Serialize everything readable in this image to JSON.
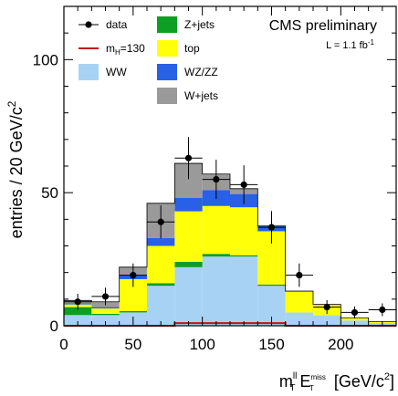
{
  "chart_data": {
    "type": "bar",
    "stacked": true,
    "x_edges": [
      0,
      20,
      40,
      60,
      80,
      100,
      120,
      140,
      160,
      180,
      200,
      220,
      240
    ],
    "xlim": [
      0,
      240
    ],
    "ylim": [
      0,
      120
    ],
    "x_ticks": [
      "0",
      "50",
      "100",
      "150",
      "200"
    ],
    "x_tick_values": [
      0,
      50,
      100,
      150,
      200
    ],
    "y_ticks": [
      "0",
      "50",
      "100"
    ],
    "y_tick_values": [
      0,
      50,
      100
    ],
    "ylabel": "entries / 20 GeV/c",
    "ylabel_sup": "2",
    "xlabel": {
      "main": "m",
      "sup": "ll",
      "sub": "T",
      "e": "E",
      "e_sup": "miss",
      "e_sub": "T",
      "units": "[GeV/c",
      "units_sup": "2",
      "units_close": "]"
    },
    "annotation": {
      "main": "CMS preliminary",
      "lumi": "L = 1.1 fb",
      "lumi_sup": "-1"
    },
    "series": [
      {
        "name": "WW",
        "color": "#a8d2f4",
        "values": [
          4,
          4,
          5,
          15,
          22,
          26,
          26,
          15,
          5,
          4,
          2,
          1
        ]
      },
      {
        "name": "Z+jets",
        "color": "#0d9e24",
        "values": [
          3,
          0.5,
          0.5,
          1,
          2,
          1,
          0.5,
          0.5,
          0,
          0,
          0,
          0
        ]
      },
      {
        "name": "top",
        "color": "#ffff0a",
        "values": [
          1,
          2,
          12,
          14,
          19,
          18,
          18,
          20,
          8,
          4,
          1,
          0.5
        ]
      },
      {
        "name": "WZ/ZZ",
        "color": "#2860e6",
        "values": [
          0.5,
          0.5,
          1.5,
          3,
          5,
          6,
          5,
          2,
          0,
          0,
          0,
          0
        ]
      },
      {
        "name": "W+jets",
        "color": "#9a9a9a",
        "values": [
          1,
          2,
          3,
          13,
          13,
          6,
          2,
          0,
          0,
          0,
          0,
          0
        ]
      }
    ],
    "signal": {
      "name": "m",
      "name_sub": "H",
      "name_rest": "=130",
      "color": "#c0131c",
      "values": [
        0,
        0,
        0,
        0,
        1,
        1,
        1,
        1,
        0,
        0,
        0,
        0
      ]
    },
    "data": {
      "name": "data",
      "x": [
        10,
        30,
        50,
        70,
        90,
        110,
        130,
        150,
        170,
        190,
        210,
        230
      ],
      "y": [
        9,
        11,
        19,
        39,
        63,
        55,
        53,
        37,
        19,
        7,
        5,
        6
      ],
      "err": [
        3,
        3.3,
        4.4,
        6.2,
        7.9,
        7.4,
        7.3,
        6.1,
        4.4,
        2.6,
        2.2,
        2.4
      ]
    },
    "legend": [
      {
        "label": "data",
        "kind": "data"
      },
      {
        "label": "Z+jets",
        "kind": "box",
        "color": "#0d9e24"
      },
      {
        "label": "m",
        "sub": "H",
        "rest": "=130",
        "kind": "line",
        "color": "#c0131c"
      },
      {
        "label": "top",
        "kind": "box",
        "color": "#ffff0a"
      },
      {
        "label": "WW",
        "kind": "box",
        "color": "#a8d2f4"
      },
      {
        "label": "WZ/ZZ",
        "kind": "box",
        "color": "#2860e6"
      },
      {
        "label": "W+jets",
        "kind": "box",
        "color": "#9a9a9a"
      }
    ]
  }
}
